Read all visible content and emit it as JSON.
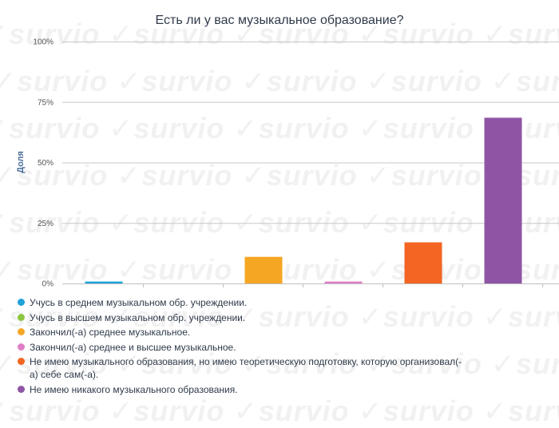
{
  "watermark_text": "survio",
  "chart_data": {
    "type": "bar",
    "title": "Есть ли у вас музыкальное образование?",
    "ylabel": "Доля",
    "xlabel": "",
    "ylim": [
      0,
      100
    ],
    "yticks": [
      {
        "value": 0,
        "label": "0%"
      },
      {
        "value": 25,
        "label": "25%"
      },
      {
        "value": 50,
        "label": "50%"
      },
      {
        "value": 75,
        "label": "75%"
      },
      {
        "value": 100,
        "label": "100%"
      }
    ],
    "grid": true,
    "legend_position": "bottom",
    "categories": [
      "Учусь в среднем музыкальном обр. учреждении.",
      "Учусь в высшем музыкальном обр. учреждении.",
      "Закончил(-а) среднее музыкальное.",
      "Закончил(-а) среднее и высшее музыкальное.",
      "Не имею музыкального образования, но имею теоретическую подготовку, которую организовал(-а) себе сам(-а).",
      "Не имею никакого музыкального образования."
    ],
    "values": [
      0.8,
      0,
      11,
      0.8,
      17,
      68.5
    ],
    "colors": [
      "#1fa3d9",
      "#8cc63f",
      "#f5a623",
      "#e07ec8",
      "#f26522",
      "#8e55a5"
    ]
  }
}
